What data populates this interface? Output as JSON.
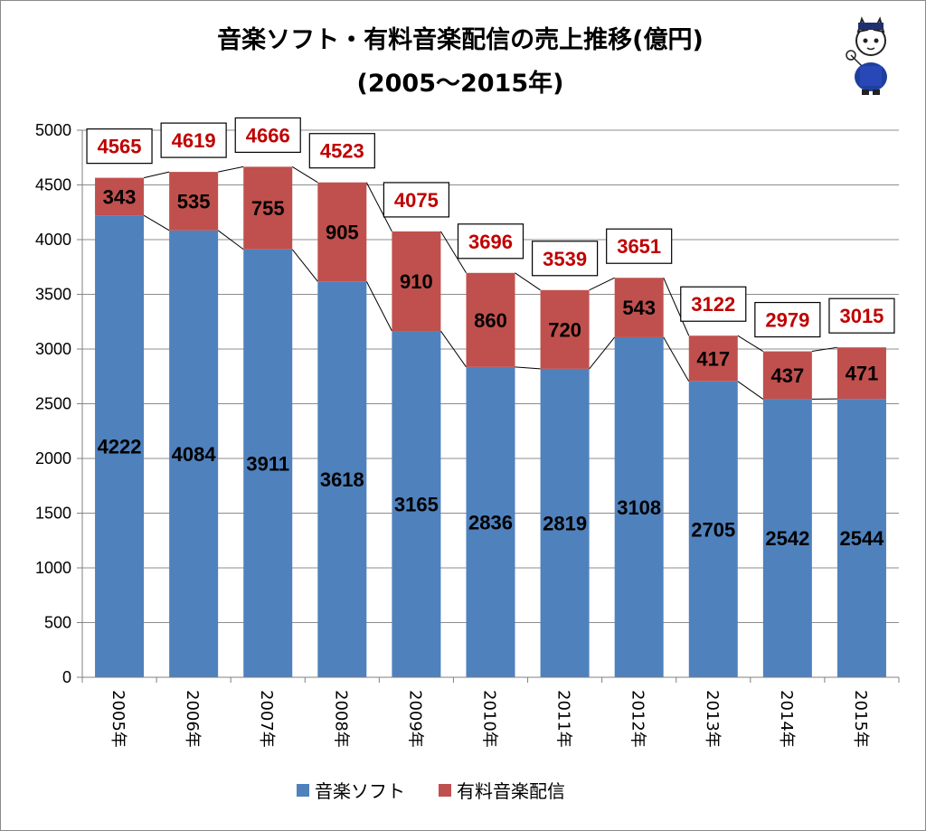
{
  "chart_data": {
    "type": "bar",
    "stacked": true,
    "title": "音楽ソフト・有料音楽配信の売上推移(億円)",
    "subtitle": "(2005～2015年)",
    "categories": [
      "2005年",
      "2006年",
      "2007年",
      "2008年",
      "2009年",
      "2010年",
      "2011年",
      "2012年",
      "2013年",
      "2014年",
      "2015年"
    ],
    "series": [
      {
        "name": "音楽ソフト",
        "color": "#4f81bd",
        "values": [
          4222,
          4084,
          3911,
          3618,
          3165,
          2836,
          2819,
          3108,
          2705,
          2542,
          2544
        ]
      },
      {
        "name": "有料音楽配信",
        "color": "#c0504d",
        "values": [
          343,
          535,
          755,
          905,
          910,
          860,
          720,
          543,
          417,
          437,
          471
        ]
      }
    ],
    "totals": [
      4565,
      4619,
      4666,
      4523,
      4075,
      3696,
      3539,
      3651,
      3122,
      2979,
      3015
    ],
    "ylim": [
      0,
      5000
    ],
    "yticks": [
      0,
      500,
      1000,
      1500,
      2000,
      2500,
      3000,
      3500,
      4000,
      4500,
      5000
    ],
    "grid": true,
    "legend": "bottom",
    "xlabel": "",
    "ylabel": "",
    "total_label_color": "#c00000"
  },
  "mascot": {
    "icon": "cat-mascot-icon"
  }
}
